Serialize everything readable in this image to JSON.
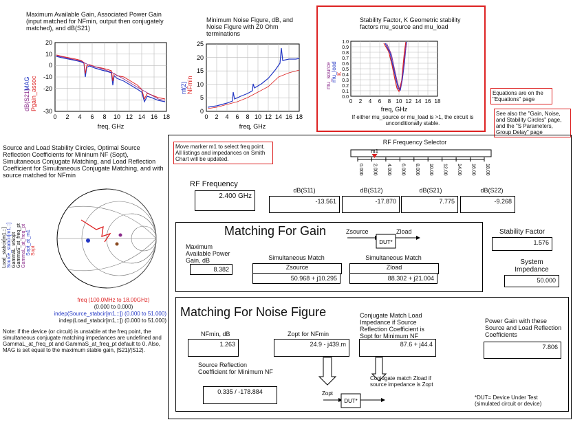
{
  "plot_gain": {
    "title": "Maximum Available Gain, Associated Power Gain (input matched for NFmin, output then conjugately matched), and dB(S21)",
    "ylabels": [
      "dB(S21)",
      "MAG",
      "Pgain_assoc"
    ],
    "yticks": [
      "20",
      "10",
      "0",
      "-10",
      "-20",
      "-30"
    ],
    "xticks": [
      "0",
      "2",
      "4",
      "6",
      "8",
      "10",
      "12",
      "14",
      "16",
      "18"
    ],
    "xlabel": "freq, GHz"
  },
  "plot_nf": {
    "title": "Minimum Noise Figure, dB, and Noise Figure with Z0 Ohm terminations",
    "ylabels": [
      "nf(2)",
      "NFmin"
    ],
    "yticks": [
      "25",
      "20",
      "15",
      "10",
      "5",
      "0"
    ],
    "xticks": [
      "0",
      "2",
      "4",
      "6",
      "8",
      "10",
      "12",
      "14",
      "16",
      "18"
    ],
    "xlabel": "freq, GHz"
  },
  "plot_k": {
    "title": "Stability Factor, K Geometric stability factors mu_source and mu_load",
    "ylabels": [
      "mu_source",
      "mu_load",
      "K"
    ],
    "yticks": [
      "1.0",
      "0.9",
      "0.8",
      "0.7",
      "0.6",
      "0.5",
      "0.4",
      "0.3",
      "0.2",
      "0.1",
      "0.0"
    ],
    "xticks": [
      "0",
      "2",
      "4",
      "6",
      "8",
      "10",
      "12",
      "14",
      "16",
      "18"
    ],
    "xlabel": "freq, GHz",
    "note": "If either mu_source or mu_load is >1, the circuit is unconditionally stable."
  },
  "notes": {
    "equations": "Equations are on the \"Equations\" page",
    "see_also": "See also the \"Gain, Noise, and Stability Circles\" page, and the \"S Parameters, Group Delay\" page",
    "marker": "Move marker m1 to select freq point. All listings and impedances on Smith Chart will be updated."
  },
  "smith": {
    "title": "Source and Load Stability Circles, Optimal Source Reflection Coefficients for Mininum NF (Sopt), Simultaneous Conjugate Matching, and Load Reflection Coefficient for Simultaneous Conjugate Matching, and with source matched for NFmin",
    "legend": [
      "Load_stabcir[m1,::]",
      "Source_stabcir[m1,::]",
      "GammaL_wSopt",
      "GammaS_at_freq_pt",
      "GammaL_at_freq_pt",
      "Sopt_at_m1",
      "Sopt"
    ],
    "freq_range": "freq (100.0MHz to 18.00GHz)",
    "range1": "(0.000 to 0.000)",
    "range2": "indep(Source_stabcir[m1,::]) (0.000 to 51.000)",
    "range3": "indep(Load_stabcir[m1,::]) (0.000 to 51.000)",
    "note": "Note: if the device (or circuit) is unstable at the freq point, the simultaneous conjugate matching impedances are undefined and GammaL_at_freq_pt and GammaS_at_freq_pt default to 0. Also, MAG is set equal to the maximum stable gain, |S21|/|S12|."
  },
  "selector": {
    "title": "RF Frequency Selector",
    "marker": "m1",
    "ticks": [
      "0.000",
      "2.000",
      "4.000",
      "6.000",
      "8.000",
      "10.00",
      "12.00",
      "14.00",
      "16.00",
      "18.00"
    ],
    "marker_value": 2.4
  },
  "rf": {
    "label": "RF Frequency",
    "value": "2.400 GHz",
    "s11_label": "dB(S11)",
    "s11": "-13.561",
    "s12_label": "dB(S12)",
    "s12": "-17.870",
    "s21_label": "dB(S21)",
    "s21": "7.775",
    "s22_label": "dB(S22)",
    "s22": "-9.268"
  },
  "gain": {
    "title": "Matching For Gain",
    "zsource": "Zsource",
    "zload": "Zload",
    "dut": "DUT*",
    "mag_label": "Maximum Available Power Gain, dB",
    "mag": "8.382",
    "sm1": "Simultaneous Match",
    "zs_hdr": "Zsource",
    "zs_val": "50.968 + j10.295",
    "sm2": "Simultaneous Match",
    "zl_hdr": "Zload",
    "zl_val": "88.302 + j21.004"
  },
  "stability": {
    "label": "Stability Factor",
    "value": "1.576",
    "imp_label": "System Impedance",
    "imp_value": "50.000"
  },
  "noise": {
    "title": "Matching For Noise Figure",
    "nfmin_label": "NFmin, dB",
    "nfmin": "1.263",
    "zopt_label": "Zopt for NFmin",
    "zopt": "24.9 - j439.m",
    "conj_label": "Conjugate Match Load Impedance if Source Reflection Coefficient is Sopt for Minimum NF",
    "conj": "87.6 + j44.4",
    "pg_label": "Power Gain with these Source and Load Reflection Coefficients",
    "pg": "7.806",
    "src_label": "Source Reflection Coefficient for Minimum NF",
    "src": "0.335 / -178.884",
    "conj_note": "Conjugate match Zload if source impedance is Zopt",
    "zopt_arrow": "Zopt",
    "dut": "DUT*",
    "dut_note": "*DUT= Device Under Test (simulated circuit or device)"
  }
}
